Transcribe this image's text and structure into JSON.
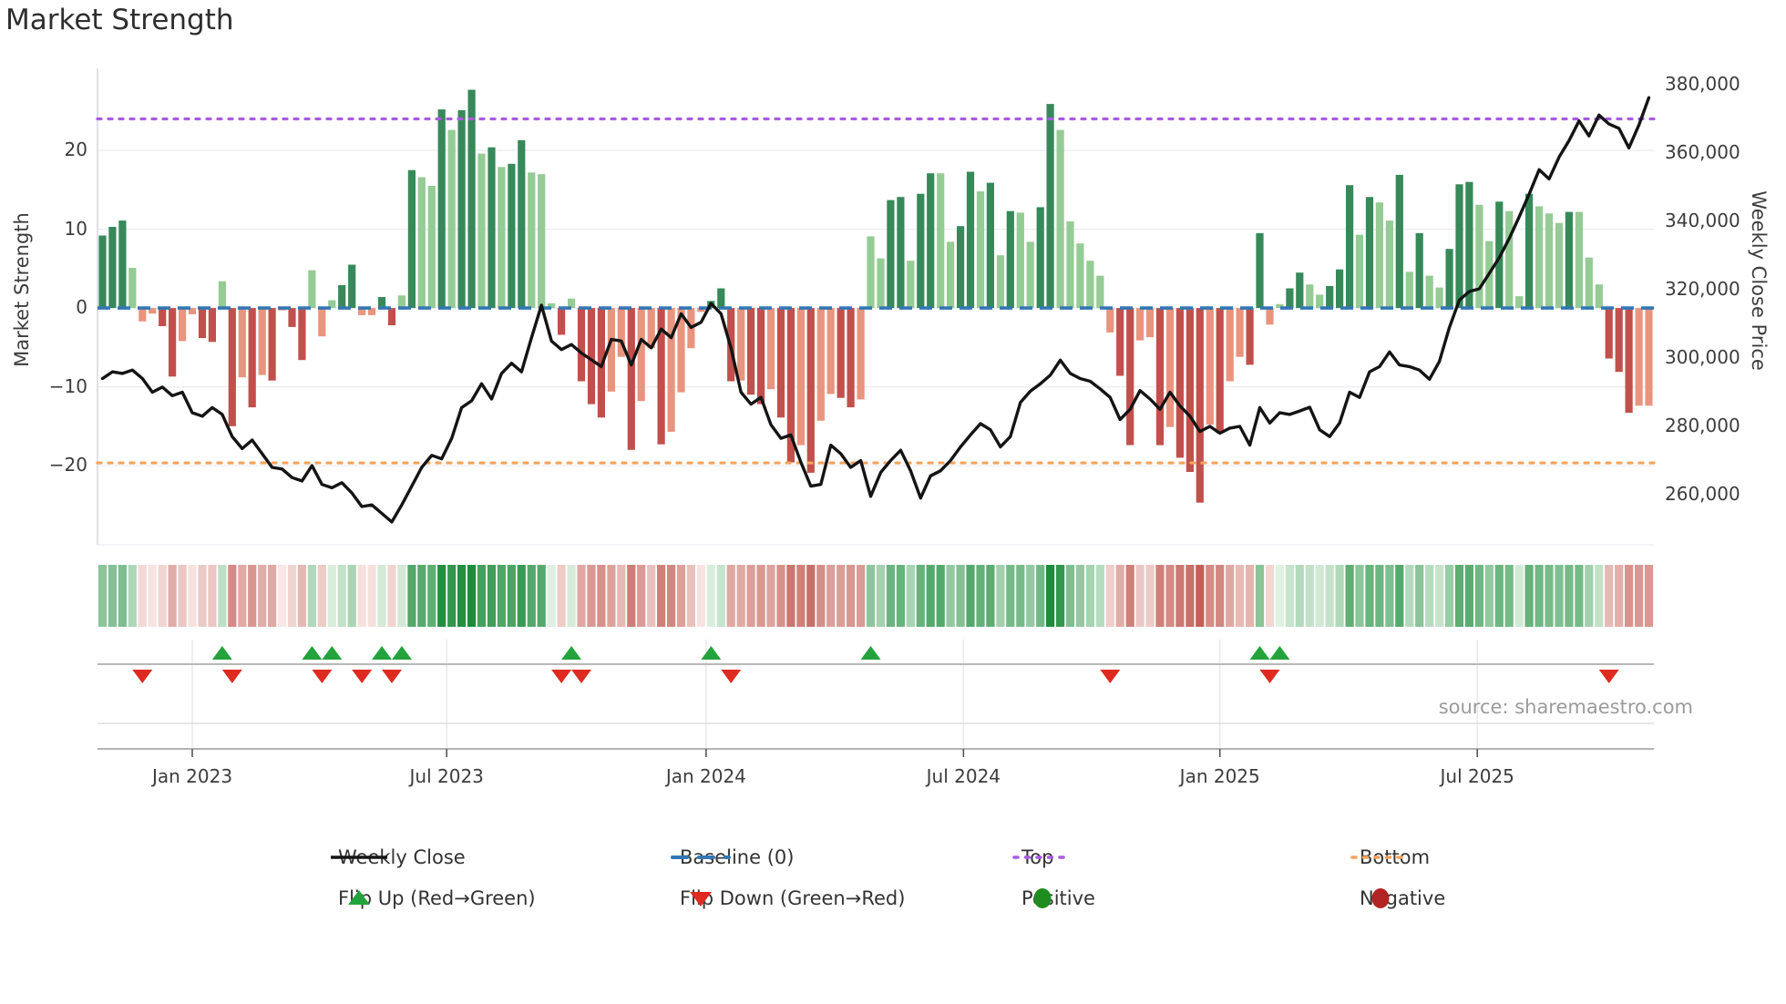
{
  "title": "Market Strength",
  "source": "source: sharemaestro.com",
  "left_axis": {
    "label": "Market Strength",
    "ticks": [
      20,
      10,
      0,
      -10,
      -20
    ]
  },
  "right_axis": {
    "label": "Weekly Close Price",
    "ticks": [
      "380,000",
      "360,000",
      "340,000",
      "320,000",
      "300,000",
      "280,000",
      "260,000"
    ],
    "tick_values": [
      380000,
      360000,
      340000,
      320000,
      300000,
      280000,
      260000
    ]
  },
  "x_axis": {
    "ticks": [
      {
        "label": "Jan 2023",
        "week": 9.0
      },
      {
        "label": "Jul 2023",
        "week": 34.5
      },
      {
        "label": "Jan 2024",
        "week": 60.5
      },
      {
        "label": "Jul 2024",
        "week": 86.3
      },
      {
        "label": "Jan 2025",
        "week": 112.0
      },
      {
        "label": "Jul 2025",
        "week": 137.8
      }
    ]
  },
  "legend": {
    "items": [
      {
        "swatch": "line-black",
        "label": "Weekly Close"
      },
      {
        "swatch": "dash-blue",
        "label": "Baseline (0)"
      },
      {
        "swatch": "dot-purple",
        "label": "Top"
      },
      {
        "swatch": "dot-orange",
        "label": "Bottom"
      },
      {
        "swatch": "triangle-up",
        "label": "Flip Up (Red→Green)"
      },
      {
        "swatch": "triangle-down",
        "label": "Flip Down (Green→Red)"
      },
      {
        "swatch": "circle-green",
        "label": "Positive"
      },
      {
        "swatch": "circle-red",
        "label": "Negative"
      }
    ]
  },
  "colors": {
    "positive_strong": "#37895a",
    "positive_weak": "#95cb95",
    "negative_strong": "#c1504c",
    "negative_weak": "#e9947e",
    "baseline": "#3377b4",
    "top": "#a95ce0",
    "bottom": "#f5a35c",
    "price_line": "#141414",
    "flip_up": "#23a33c",
    "flip_down": "#de2a20",
    "legend_positive_dot": "#1e8c1e",
    "legend_negative_dot": "#b22424",
    "heat_green_light": "#eaf6eb",
    "heat_green_max": "#1e8c3c",
    "heat_red_light": "#faece9",
    "heat_red_max": "#c05a52",
    "grid": "#ececf2",
    "spine": "#d0d0d8",
    "marker_axis": "#b8b8b8",
    "x_spine": "#9a9a9a"
  },
  "chart_data": {
    "type": "bar+line",
    "n_weeks": 156,
    "title": "Market Strength",
    "baseline": 0,
    "top_line": 24,
    "bottom_line": -20,
    "left_ylim": [
      -30.05,
      30.42
    ],
    "right_ylim": [
      245300,
      384900
    ],
    "legend_position": "bottom",
    "grid": "horizontal-light",
    "series": [
      {
        "name": "Market Strength Momentum",
        "type": "bar",
        "axis": "left",
        "values": [
          9.2,
          10.3,
          11.1,
          5.1,
          -1.7,
          -0.7,
          -2.3,
          -8.7,
          -4.2,
          -0.8,
          -3.8,
          -4.3,
          3.4,
          -15.0,
          -8.8,
          -12.6,
          -8.5,
          -9.2,
          -0.3,
          -2.4,
          -6.6,
          4.8,
          -3.6,
          1.0,
          2.9,
          5.5,
          -0.9,
          -0.9,
          1.4,
          -2.2,
          1.6,
          17.5,
          16.6,
          15.5,
          25.2,
          22.6,
          25.1,
          27.7,
          19.6,
          20.4,
          17.9,
          18.3,
          21.3,
          17.2,
          17.0,
          0.6,
          -3.4,
          1.2,
          -9.3,
          -12.2,
          -13.9,
          -10.6,
          -6.2,
          -18.0,
          -11.8,
          -5.1,
          -17.3,
          -15.7,
          -10.7,
          -5.1,
          -0.5,
          0.9,
          2.5,
          -9.3,
          -9.2,
          -11.0,
          -12.2,
          -10.3,
          -13.9,
          -19.6,
          -17.4,
          -20.9,
          -14.3,
          -10.9,
          -11.4,
          -12.6,
          -11.6,
          9.1,
          6.3,
          13.7,
          14.1,
          6.0,
          14.5,
          17.1,
          17.1,
          8.4,
          10.4,
          17.3,
          14.8,
          15.9,
          6.7,
          12.3,
          12.1,
          8.4,
          12.8,
          25.9,
          22.6,
          11.0,
          8.2,
          6.0,
          4.1,
          -3.1,
          -8.6,
          -17.4,
          -4.1,
          -3.7,
          -17.4,
          -15.1,
          -19.0,
          -20.8,
          -24.7,
          -14.8,
          -15.9,
          -9.3,
          -6.2,
          -7.2,
          9.5,
          -2.1,
          0.5,
          2.5,
          4.5,
          3.0,
          1.7,
          2.8,
          4.9,
          15.6,
          9.3,
          14.1,
          13.4,
          11.1,
          16.9,
          4.6,
          9.5,
          4.1,
          2.6,
          7.5,
          15.7,
          16.0,
          13.1,
          8.5,
          13.5,
          12.3,
          1.5,
          14.5,
          12.9,
          12.0,
          10.8,
          12.2,
          12.2,
          6.4,
          3.0,
          -6.4,
          -8.1,
          -13.3,
          -12.4,
          -12.4
        ]
      },
      {
        "name": "Weekly Close",
        "type": "line",
        "axis": "right",
        "values": [
          294000,
          296000,
          295500,
          296500,
          294000,
          290000,
          291500,
          289000,
          290000,
          284000,
          283000,
          285500,
          283500,
          277000,
          273500,
          276000,
          272000,
          268000,
          267500,
          265000,
          264000,
          268500,
          263000,
          262000,
          263500,
          260500,
          256500,
          257000,
          254500,
          252000,
          257000,
          262500,
          268000,
          271500,
          270500,
          276500,
          285500,
          287500,
          292500,
          288000,
          295500,
          298500,
          296000,
          306000,
          315500,
          305000,
          302500,
          304000,
          301500,
          299500,
          297500,
          305500,
          305000,
          298000,
          305500,
          303000,
          308500,
          306000,
          313000,
          309000,
          310500,
          316000,
          313000,
          303000,
          290000,
          286500,
          288500,
          280500,
          276500,
          277500,
          269500,
          262500,
          263000,
          274500,
          272000,
          268000,
          270000,
          259500,
          266500,
          270000,
          273000,
          267000,
          259000,
          265500,
          267000,
          270000,
          274000,
          277500,
          280800,
          279000,
          274000,
          277000,
          287000,
          290300,
          292500,
          295000,
          299400,
          295500,
          294000,
          293200,
          291000,
          288500,
          282000,
          285000,
          290500,
          288000,
          285000,
          290000,
          286000,
          283000,
          278500,
          280000,
          278000,
          279500,
          280000,
          274500,
          285500,
          281000,
          284000,
          283500,
          284500,
          285600,
          279000,
          277000,
          281000,
          290000,
          288500,
          296000,
          297500,
          301800,
          298000,
          297500,
          296500,
          293800,
          299000,
          309000,
          317000,
          319500,
          320300,
          324800,
          329400,
          335000,
          341400,
          348000,
          355200,
          352500,
          358900,
          363700,
          369500,
          365100,
          371200,
          368600,
          367300,
          361600,
          368300,
          376300
        ]
      }
    ],
    "flip_up_weeks": [
      12,
      21,
      23,
      28,
      30,
      47,
      61,
      77,
      116,
      118
    ],
    "flip_down_weeks": [
      4,
      13,
      22,
      26,
      29,
      46,
      48,
      63,
      101,
      117,
      151
    ],
    "heatmap": {
      "type": "intensity-strip",
      "note": "same momentum values, green positive / red negative, opacity scales with magnitude"
    }
  }
}
